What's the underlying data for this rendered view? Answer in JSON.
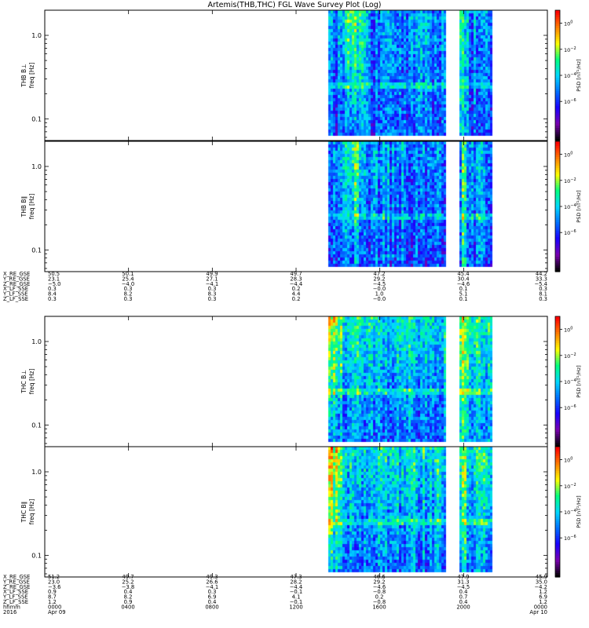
{
  "title": "Artemis(THB,THC) FGL Wave Survey Plot (Log)",
  "chart_data": {
    "type": "heatmap",
    "scale": "log",
    "colormap": [
      "#000000",
      "#7a00b0",
      "#1a00ff",
      "#0070ff",
      "#00d8ff",
      "#00ff80",
      "#ffff00",
      "#ff8000",
      "#ff0000"
    ],
    "x_time_range_hours": [
      0,
      24
    ],
    "x_ticks": [
      "0000",
      "0400",
      "0800",
      "1200",
      "1600",
      "2000",
      "0000"
    ],
    "x_date_labels": {
      "year": "2016",
      "start": "Apr 09",
      "end": "Apr 10"
    },
    "data_windows_hours": [
      [
        13.55,
        19.1
      ],
      [
        19.8,
        21.3
      ]
    ],
    "y_range_hz": [
      0.055,
      2.0
    ],
    "y_ticks": [
      {
        "value": 1.0,
        "label": "1.0"
      },
      {
        "value": 0.1,
        "label": "0.1"
      }
    ],
    "colorbar": {
      "label": "PSD [nT²/Hz]",
      "range": [
        1e-09,
        10.0
      ],
      "ticks": [
        {
          "exp": 0,
          "text": "10",
          "sup": "0"
        },
        {
          "exp": -2,
          "text": "10",
          "sup": "−2"
        },
        {
          "exp": -4,
          "text": "10",
          "sup": "−4"
        },
        {
          "exp": -6,
          "text": "10",
          "sup": "−6"
        }
      ]
    },
    "panels": [
      {
        "id": "thb-perp",
        "ylabel_probe": "THB B⊥",
        "ylabel_unit": "freq [Hz]"
      },
      {
        "id": "thb-par",
        "ylabel_probe": "THB B∥",
        "ylabel_unit": "freq [Hz]"
      },
      {
        "id": "thc-perp",
        "ylabel_probe": "THC B⊥",
        "ylabel_unit": "freq [Hz]"
      },
      {
        "id": "thc-par",
        "ylabel_probe": "THC B∥",
        "ylabel_unit": "freq [Hz]"
      }
    ],
    "ephemeris_blocks": [
      {
        "probe": "THB",
        "rows": [
          {
            "label": "X_RE_GSE",
            "values": [
              "50.5",
              "50.1",
              "49.9",
              "49.7",
              "47.2",
              "45.4",
              "44.2"
            ]
          },
          {
            "label": "Y_RE_GSE",
            "values": [
              "23.1",
              "25.4",
              "27.1",
              "28.3",
              "29.2",
              "30.4",
              "33.3"
            ]
          },
          {
            "label": "Z_RE_GSE",
            "values": [
              "−5.0",
              "−4.0",
              "−4.1",
              "−4.4",
              "−4.5",
              "−4.6",
              "−5.4"
            ]
          },
          {
            "label": "X_LF_SSE",
            "values": [
              "0.3",
              "0.3",
              "0.3",
              "0.2",
              "−0.0",
              "0.1",
              "0.3"
            ]
          },
          {
            "label": "Y_LF_SSE",
            "values": [
              "8.4",
              "8.2",
              "8.3",
              "4.4",
              "1.0",
              "5.1",
              "8.1"
            ]
          },
          {
            "label": "Z_LF_SSE",
            "values": [
              "0.3",
              "0.3",
              "0.3",
              "0.2",
              "−0.0",
              "0.1",
              "0.3"
            ]
          }
        ]
      },
      {
        "probe": "THC",
        "rows": [
          {
            "label": "X_RE_GSE",
            "values": [
              "51.2",
              "49.7",
              "49.3",
              "47.3",
              "46.6",
              "47.9",
              "45.9"
            ]
          },
          {
            "label": "Y_RE_GSE",
            "values": [
              "23.0",
              "25.2",
              "26.6",
              "28.2",
              "29.2",
              "31.3",
              "35.0"
            ]
          },
          {
            "label": "Z_RE_GSE",
            "values": [
              "−3.6",
              "−3.8",
              "−4.1",
              "−4.4",
              "−4.6",
              "−4.5",
              "−4.2"
            ]
          },
          {
            "label": "X_LF_SSE",
            "values": [
              "0.9",
              "0.4",
              "0.3",
              "−0.1",
              "−0.8",
              "0.4",
              "1.2"
            ]
          },
          {
            "label": "Y_LF_SSE",
            "values": [
              "8.7",
              "8.2",
              "6.9",
              "4.1",
              "0.2",
              "0.7",
              "6.9"
            ]
          },
          {
            "label": "Z_LF_SSE",
            "values": [
              "1.2",
              "0.9",
              "0.4",
              "−0.1",
              "−0.8",
              "0.4",
              "1.2"
            ]
          }
        ]
      }
    ],
    "time_label": "hhmm",
    "year_label": "2016"
  }
}
